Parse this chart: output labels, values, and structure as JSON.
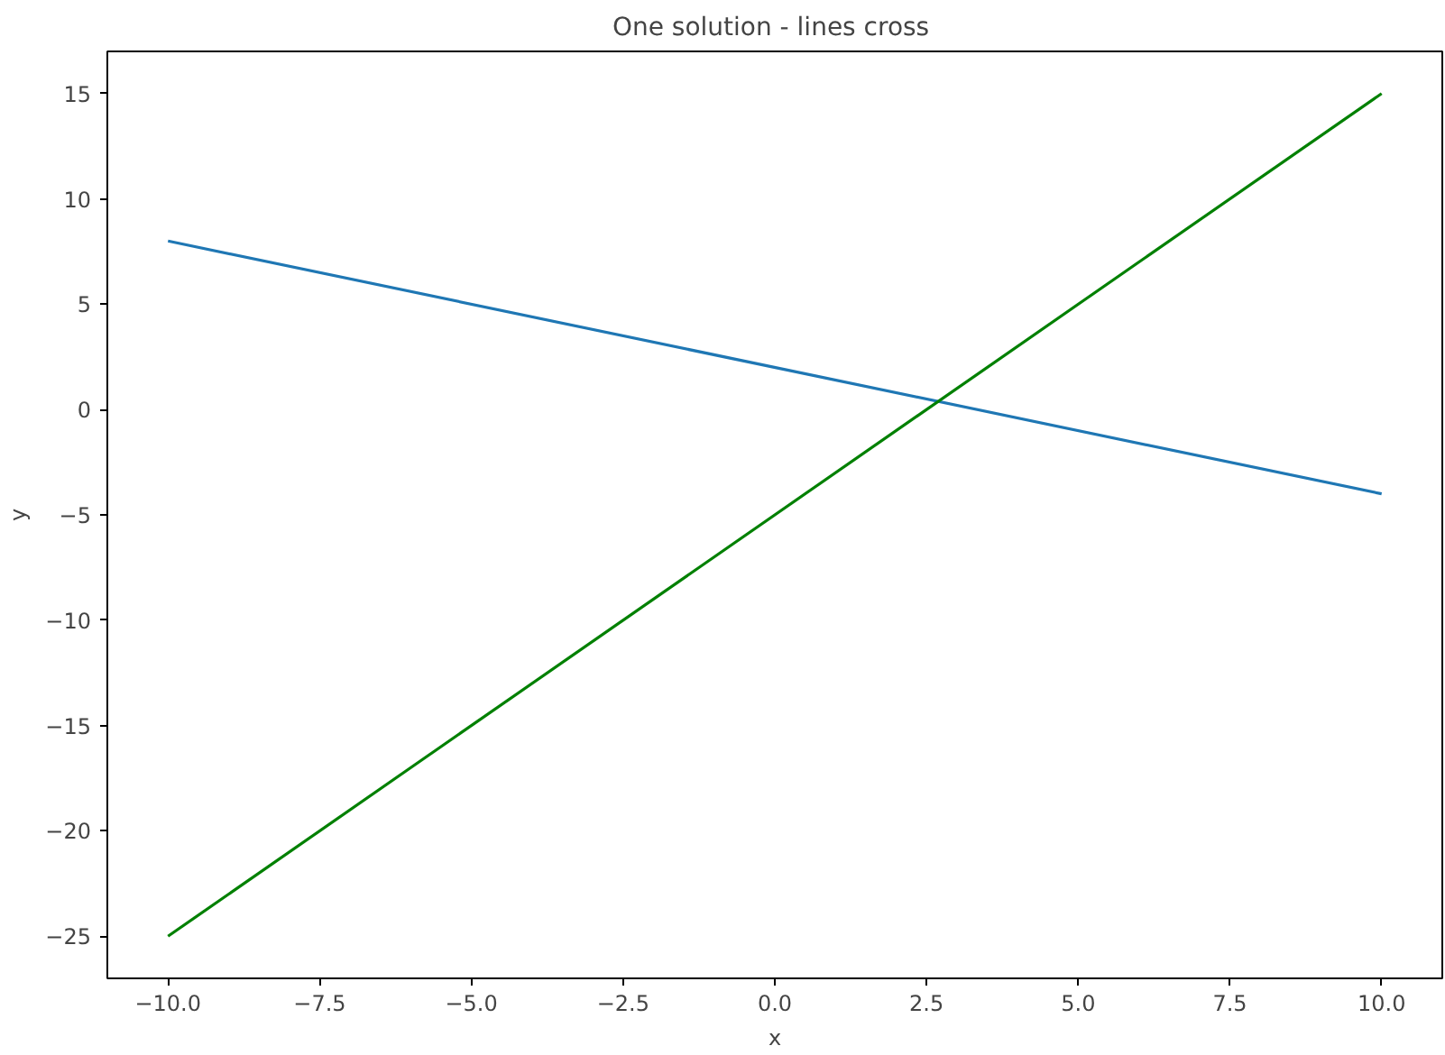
{
  "chart_data": {
    "type": "line",
    "title": "One solution -  lines cross",
    "xlabel": "x",
    "ylabel": "y",
    "x": [
      -10,
      10
    ],
    "series": [
      {
        "color": "#1f77b4",
        "values": [
          8,
          -4
        ]
      },
      {
        "color": "#008000",
        "values": [
          -25,
          15
        ]
      }
    ],
    "xlim": [
      -11,
      11
    ],
    "ylim": [
      -27,
      17
    ],
    "xticks": [
      {
        "value": -10,
        "label": "−10.0"
      },
      {
        "value": -7.5,
        "label": "−7.5"
      },
      {
        "value": -5,
        "label": "−5.0"
      },
      {
        "value": -2.5,
        "label": "−2.5"
      },
      {
        "value": 0,
        "label": "0.0"
      },
      {
        "value": 2.5,
        "label": "2.5"
      },
      {
        "value": 5,
        "label": "5.0"
      },
      {
        "value": 7.5,
        "label": "7.5"
      },
      {
        "value": 10,
        "label": "10.0"
      }
    ],
    "yticks": [
      {
        "value": -25,
        "label": "−25"
      },
      {
        "value": -20,
        "label": "−20"
      },
      {
        "value": -15,
        "label": "−15"
      },
      {
        "value": -10,
        "label": "−10"
      },
      {
        "value": -5,
        "label": "−5"
      },
      0,
      5,
      10,
      15
    ],
    "grid": false,
    "marker": "none",
    "line_style": "solid"
  }
}
